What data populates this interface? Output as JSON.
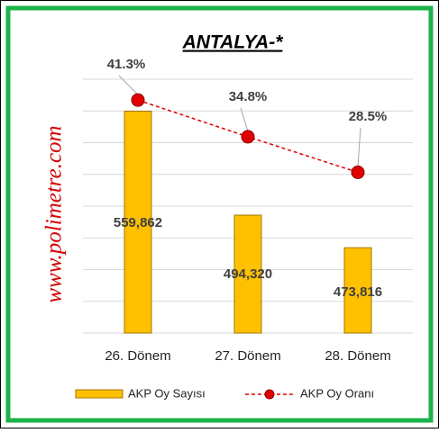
{
  "chart_data": {
    "type": "bar",
    "title": "ANTALYA-*",
    "watermark": "www.polimetre.com",
    "categories": [
      "26. Dönem",
      "27. Dönem",
      "28. Dönem"
    ],
    "series": [
      {
        "name": "AKP Oy Sayısı",
        "type": "bar",
        "color": "#ffc000",
        "values": [
          559862,
          494320,
          473816
        ],
        "value_labels": [
          "559,862",
          "494,320",
          "473,816"
        ]
      },
      {
        "name": "AKP Oy Oranı",
        "type": "line",
        "axis": "y2",
        "color": "#e00000",
        "values": [
          41.3,
          34.8,
          28.5
        ],
        "value_labels": [
          "41.3%",
          "34.8%",
          "28.5%"
        ]
      }
    ],
    "ylim": [
      420000,
      580000
    ],
    "yticks": [
      420000,
      440000,
      460000,
      480000,
      500000,
      520000,
      540000,
      560000,
      580000
    ],
    "y2lim": [
      0,
      45
    ],
    "grid": true
  }
}
